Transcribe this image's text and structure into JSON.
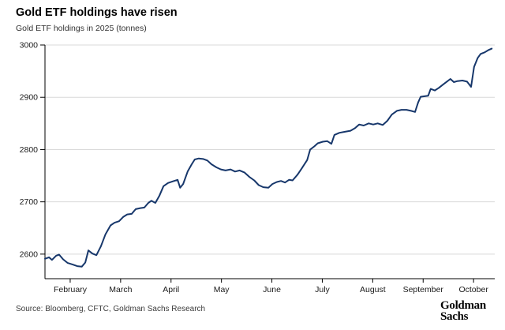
{
  "header": {
    "title": "Gold ETF holdings have risen",
    "subtitle": "Gold ETF holdings in 2025 (tonnes)"
  },
  "footer": {
    "source": "Source: Bloomberg, CFTC, Goldman Sachs Research",
    "logo_line1": "Goldman",
    "logo_line2": "Sachs"
  },
  "colors": {
    "line": "#17376b",
    "grid": "#d9d9d9",
    "axis": "#000000",
    "tick_text": "#1a1a1a"
  },
  "chart_data": {
    "type": "line",
    "title": "Gold ETF holdings have risen",
    "subtitle": "Gold ETF holdings in 2025 (tonnes)",
    "xlabel": "",
    "ylabel": "tonnes",
    "grid": "horizontal",
    "legend": "none",
    "ylim": [
      2553,
      3000
    ],
    "xlim": [
      1.5,
      10.42
    ],
    "y_ticks": [
      2600,
      2700,
      2800,
      2900,
      3000
    ],
    "x_ticks": [
      {
        "m": 2,
        "label": "February"
      },
      {
        "m": 3,
        "label": "March"
      },
      {
        "m": 4,
        "label": "April"
      },
      {
        "m": 5,
        "label": "May"
      },
      {
        "m": 6,
        "label": "June"
      },
      {
        "m": 7,
        "label": "July"
      },
      {
        "m": 8,
        "label": "August"
      },
      {
        "m": 9,
        "label": "September"
      },
      {
        "m": 10,
        "label": "October"
      }
    ],
    "series": [
      {
        "name": "Gold ETF holdings (tonnes)",
        "color": "#17376b",
        "points": [
          [
            1.5,
            2591
          ],
          [
            1.58,
            2594
          ],
          [
            1.64,
            2589
          ],
          [
            1.72,
            2597
          ],
          [
            1.78,
            2599
          ],
          [
            1.86,
            2590
          ],
          [
            1.95,
            2583
          ],
          [
            2.05,
            2580
          ],
          [
            2.14,
            2577
          ],
          [
            2.23,
            2576
          ],
          [
            2.3,
            2584
          ],
          [
            2.36,
            2607
          ],
          [
            2.44,
            2601
          ],
          [
            2.52,
            2598
          ],
          [
            2.61,
            2615
          ],
          [
            2.7,
            2638
          ],
          [
            2.8,
            2655
          ],
          [
            2.88,
            2660
          ],
          [
            2.97,
            2663
          ],
          [
            3.05,
            2671
          ],
          [
            3.13,
            2676
          ],
          [
            3.22,
            2677
          ],
          [
            3.3,
            2686
          ],
          [
            3.39,
            2688
          ],
          [
            3.47,
            2689
          ],
          [
            3.55,
            2698
          ],
          [
            3.61,
            2702
          ],
          [
            3.69,
            2698
          ],
          [
            3.77,
            2712
          ],
          [
            3.85,
            2730
          ],
          [
            3.94,
            2736
          ],
          [
            4.03,
            2739
          ],
          [
            4.13,
            2742
          ],
          [
            4.18,
            2727
          ],
          [
            4.24,
            2734
          ],
          [
            4.33,
            2758
          ],
          [
            4.41,
            2772
          ],
          [
            4.47,
            2781
          ],
          [
            4.55,
            2783
          ],
          [
            4.64,
            2782
          ],
          [
            4.72,
            2779
          ],
          [
            4.8,
            2772
          ],
          [
            4.9,
            2766
          ],
          [
            4.99,
            2762
          ],
          [
            5.08,
            2760
          ],
          [
            5.18,
            2762
          ],
          [
            5.27,
            2758
          ],
          [
            5.36,
            2760
          ],
          [
            5.46,
            2756
          ],
          [
            5.55,
            2748
          ],
          [
            5.65,
            2741
          ],
          [
            5.74,
            2732
          ],
          [
            5.83,
            2728
          ],
          [
            5.93,
            2727
          ],
          [
            6.01,
            2734
          ],
          [
            6.1,
            2738
          ],
          [
            6.18,
            2740
          ],
          [
            6.26,
            2737
          ],
          [
            6.34,
            2742
          ],
          [
            6.41,
            2741
          ],
          [
            6.51,
            2752
          ],
          [
            6.6,
            2765
          ],
          [
            6.7,
            2780
          ],
          [
            6.76,
            2800
          ],
          [
            6.84,
            2806
          ],
          [
            6.91,
            2812
          ],
          [
            7.01,
            2815
          ],
          [
            7.1,
            2816
          ],
          [
            7.18,
            2811
          ],
          [
            7.24,
            2828
          ],
          [
            7.34,
            2832
          ],
          [
            7.45,
            2834
          ],
          [
            7.56,
            2836
          ],
          [
            7.65,
            2841
          ],
          [
            7.73,
            2848
          ],
          [
            7.82,
            2846
          ],
          [
            7.92,
            2850
          ],
          [
            8.01,
            2848
          ],
          [
            8.1,
            2850
          ],
          [
            8.2,
            2847
          ],
          [
            8.29,
            2855
          ],
          [
            8.38,
            2867
          ],
          [
            8.48,
            2874
          ],
          [
            8.57,
            2876
          ],
          [
            8.67,
            2876
          ],
          [
            8.76,
            2874
          ],
          [
            8.84,
            2872
          ],
          [
            8.9,
            2890
          ],
          [
            8.95,
            2901
          ],
          [
            9.03,
            2902
          ],
          [
            9.1,
            2903
          ],
          [
            9.15,
            2916
          ],
          [
            9.23,
            2913
          ],
          [
            9.31,
            2918
          ],
          [
            9.39,
            2924
          ],
          [
            9.47,
            2930
          ],
          [
            9.54,
            2935
          ],
          [
            9.61,
            2929
          ],
          [
            9.68,
            2931
          ],
          [
            9.78,
            2932
          ],
          [
            9.87,
            2930
          ],
          [
            9.95,
            2920
          ],
          [
            10.01,
            2958
          ],
          [
            10.08,
            2975
          ],
          [
            10.14,
            2983
          ],
          [
            10.22,
            2986
          ],
          [
            10.29,
            2990
          ],
          [
            10.36,
            2993
          ]
        ]
      }
    ]
  }
}
